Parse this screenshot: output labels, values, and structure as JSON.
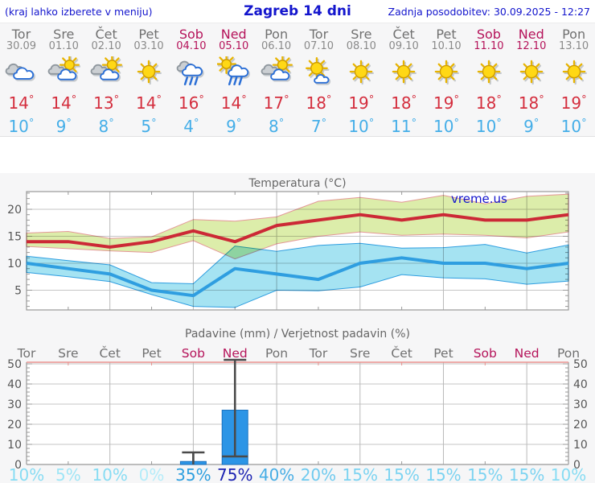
{
  "header": {
    "note": "(kraj lahko izberete v meniju)",
    "title": "Zagreb 14 dni",
    "updated": "Zadnja posodobitev: 30.09.2025 - 12:27"
  },
  "colors": {
    "header_blue": "#1315cd",
    "weekend": "#b5135a",
    "weekday_gray": "#707070",
    "max_temp_red": "#d42e3e",
    "min_temp_blue": "#45aee8",
    "chart_title_gray": "#666666",
    "axis_gray": "#555555",
    "bar_blue": "#2c95e6"
  },
  "forecast": {
    "days": [
      {
        "name": "Tor",
        "date": "30.09",
        "icon": "cloudy",
        "tmax": 14,
        "tmin": 10,
        "weekend": false
      },
      {
        "name": "Sre",
        "date": "01.10",
        "icon": "partly-cloudy",
        "tmax": 14,
        "tmin": 9,
        "weekend": false
      },
      {
        "name": "Čet",
        "date": "02.10",
        "icon": "partly-cloudy",
        "tmax": 13,
        "tmin": 8,
        "weekend": false
      },
      {
        "name": "Pet",
        "date": "03.10",
        "icon": "sunny",
        "tmax": 14,
        "tmin": 5,
        "weekend": false
      },
      {
        "name": "Sob",
        "date": "04.10",
        "icon": "rain",
        "tmax": 16,
        "tmin": 4,
        "weekend": true
      },
      {
        "name": "Ned",
        "date": "05.10",
        "icon": "sun-shower",
        "tmax": 14,
        "tmin": 9,
        "weekend": true
      },
      {
        "name": "Pon",
        "date": "06.10",
        "icon": "partly-cloudy",
        "tmax": 17,
        "tmin": 8,
        "weekend": false
      },
      {
        "name": "Tor",
        "date": "07.10",
        "icon": "mostly-sunny",
        "tmax": 18,
        "tmin": 7,
        "weekend": false
      },
      {
        "name": "Sre",
        "date": "08.10",
        "icon": "sunny",
        "tmax": 19,
        "tmin": 10,
        "weekend": false
      },
      {
        "name": "Čet",
        "date": "09.10",
        "icon": "sunny",
        "tmax": 18,
        "tmin": 11,
        "weekend": false
      },
      {
        "name": "Pet",
        "date": "10.10",
        "icon": "sunny",
        "tmax": 19,
        "tmin": 10,
        "weekend": false
      },
      {
        "name": "Sob",
        "date": "11.10",
        "icon": "sunny",
        "tmax": 18,
        "tmin": 10,
        "weekend": true
      },
      {
        "name": "Ned",
        "date": "12.10",
        "icon": "sunny",
        "tmax": 18,
        "tmin": 9,
        "weekend": true
      },
      {
        "name": "Pon",
        "date": "13.10",
        "icon": "sunny",
        "tmax": 19,
        "tmin": 10,
        "weekend": false
      }
    ]
  },
  "chart_data": [
    {
      "type": "line",
      "title": "Temperatura (°C)",
      "watermark": "vreme.us",
      "x_days": [
        "Tor",
        "Sre",
        "Čet",
        "Pet",
        "Sob",
        "Ned",
        "Pon",
        "Tor",
        "Sre",
        "Čet",
        "Pet",
        "Sob",
        "Ned",
        "Pon"
      ],
      "ylim": [
        1,
        23.5
      ],
      "yticks": [
        5,
        10,
        15,
        20
      ],
      "grid_day_indices": [
        2,
        4,
        6,
        8,
        10,
        12
      ],
      "series": [
        {
          "name": "max-temp-range",
          "type": "band",
          "fill": "#dcedaa",
          "stroke": "#e49898",
          "upper": [
            15.6,
            15.9,
            14.6,
            14.9,
            18.1,
            17.8,
            18.6,
            21.5,
            22.2,
            21.3,
            22.6,
            21.0,
            22.4,
            22.8
          ],
          "lower": [
            13.1,
            12.7,
            12.3,
            12.0,
            14.2,
            10.8,
            13.6,
            15.0,
            15.8,
            15.2,
            15.4,
            15.2,
            14.7,
            15.8
          ]
        },
        {
          "name": "max-temp",
          "type": "line",
          "color": "#cc2936",
          "values": [
            14,
            14,
            13,
            14,
            16,
            14,
            17,
            18,
            19,
            18,
            19,
            18,
            18,
            19
          ]
        },
        {
          "name": "min-temp-range",
          "type": "band",
          "fill": "#a5e3f2",
          "stroke": "#2f9ee0",
          "upper": [
            11.3,
            10.5,
            9.7,
            6.4,
            6.2,
            13.2,
            12.2,
            13.3,
            13.7,
            12.8,
            12.9,
            13.5,
            11.9,
            13.4
          ],
          "lower": [
            8.3,
            7.5,
            6.6,
            4.2,
            2.0,
            1.8,
            5.0,
            4.9,
            5.6,
            7.9,
            7.3,
            7.1,
            6.1,
            6.7
          ]
        },
        {
          "name": "min-temp",
          "type": "line",
          "color": "#2f9ee0",
          "values": [
            10,
            9,
            8,
            5,
            4,
            9,
            8,
            7,
            10,
            11,
            10,
            10,
            9,
            10
          ]
        }
      ]
    },
    {
      "type": "bar",
      "title": "Padavine (mm) / Verjetnost padavin (%)",
      "day_labels": [
        "Tor",
        "Sre",
        "Čet",
        "Pet",
        "Sob",
        "Ned",
        "Pon",
        "Tor",
        "Sre",
        "Čet",
        "Pet",
        "Sob",
        "Ned",
        "Pon"
      ],
      "weekend_indices": [
        4,
        5,
        11,
        12
      ],
      "ylim": [
        0,
        51
      ],
      "yticks": [
        0,
        10,
        20,
        30,
        40,
        50
      ],
      "grid_day_indices": [
        2,
        4,
        6,
        8,
        10,
        12
      ],
      "bar_color": "#2c95e6",
      "bar_stroke": "#1a72c0",
      "whisker_color": "#4a4a4a",
      "bars_mm": [
        0,
        0,
        0,
        0,
        1.5,
        27,
        0,
        0,
        0,
        0,
        0,
        0,
        0,
        0
      ],
      "whisker_min": [
        null,
        null,
        null,
        null,
        0,
        4,
        null,
        null,
        null,
        null,
        null,
        null,
        null,
        null
      ],
      "whisker_max": [
        null,
        null,
        null,
        null,
        6,
        52,
        null,
        null,
        null,
        null,
        null,
        null,
        null,
        null
      ],
      "probabilities": [
        {
          "label": "10%",
          "color": "#87dcf3"
        },
        {
          "label": "5%",
          "color": "#9fe5f6"
        },
        {
          "label": "10%",
          "color": "#87dcf3"
        },
        {
          "label": "0%",
          "color": "#b4ecf9"
        },
        {
          "label": "35%",
          "color": "#2e9fdf"
        },
        {
          "label": "75%",
          "color": "#1c23b2"
        },
        {
          "label": "40%",
          "color": "#47ade4"
        },
        {
          "label": "20%",
          "color": "#6fcaef"
        },
        {
          "label": "15%",
          "color": "#7cd3f1"
        },
        {
          "label": "15%",
          "color": "#7cd3f1"
        },
        {
          "label": "15%",
          "color": "#7cd3f1"
        },
        {
          "label": "15%",
          "color": "#7cd3f1"
        },
        {
          "label": "15%",
          "color": "#7cd3f1"
        },
        {
          "label": "10%",
          "color": "#87dcf3"
        }
      ]
    }
  ]
}
